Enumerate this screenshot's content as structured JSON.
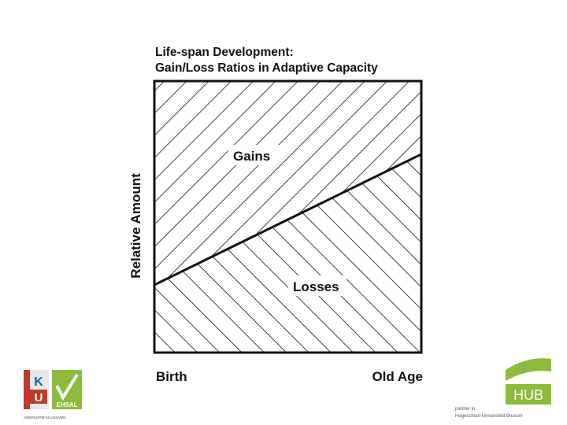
{
  "header": {
    "title_line1": "Life-span Development:",
    "title_line2": "Gain/Loss Ratios in Adaptive Capacity"
  },
  "diagram": {
    "y_axis_label": "Relative Amount",
    "upper_region": "Gains",
    "lower_region": "Losses",
    "x_start": "Birth",
    "x_end": "Old Age"
  },
  "logos": {
    "left_logo_letters": [
      "K",
      "U"
    ],
    "left_logo_caption": "ASSOCIATIE KU LEUVEN",
    "ehsal": "EHSAL",
    "hub": "HUB",
    "hub_caption_line1": "partner in",
    "hub_caption_line2": "Hogeschool-Universiteit Brussel"
  }
}
